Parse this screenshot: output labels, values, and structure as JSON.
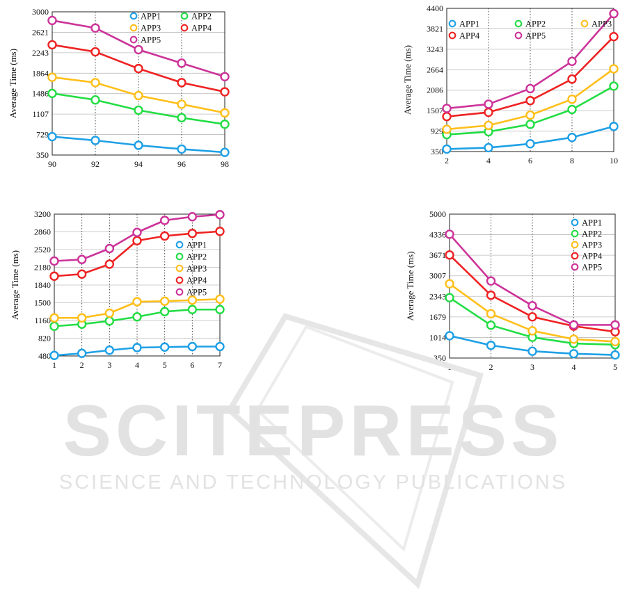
{
  "figure": {
    "watermark": {
      "main": "SCITEPRESS",
      "sub": "SCIENCE AND TECHNOLOGY PUBLICATIONS"
    }
  },
  "chart_data": [
    {
      "type": "line",
      "panel": "top-left",
      "ylabel": "Average Time (ms)",
      "xlabel": "",
      "x": [
        90,
        92,
        94,
        96,
        98
      ],
      "xticks": [
        "90",
        "92",
        "94",
        "96",
        "98"
      ],
      "yticks": [
        "350",
        "729",
        "1107",
        "1486",
        "1864",
        "2243",
        "2621",
        "3000"
      ],
      "ylim": [
        350,
        3000
      ],
      "grid": "vertical dotted + horizontal",
      "legend_placement": "top-right",
      "legend_cols": 2,
      "series": [
        {
          "name": "APP1",
          "color": "#1ea0e6",
          "values": [
            690,
            620,
            530,
            460,
            400
          ]
        },
        {
          "name": "APP2",
          "color": "#22dd44",
          "values": [
            1490,
            1370,
            1180,
            1040,
            920
          ]
        },
        {
          "name": "APP3",
          "color": "#ffbf1a",
          "values": [
            1790,
            1690,
            1450,
            1290,
            1130
          ]
        },
        {
          "name": "APP4",
          "color": "#ee2222",
          "values": [
            2390,
            2260,
            1950,
            1690,
            1520
          ]
        },
        {
          "name": "APP5",
          "color": "#cc3399",
          "values": [
            2840,
            2700,
            2300,
            2050,
            1800
          ]
        }
      ]
    },
    {
      "type": "line",
      "panel": "top-right",
      "ylabel": "Average Time (ms)",
      "xlabel": "",
      "x": [
        2,
        4,
        6,
        8,
        10
      ],
      "xticks": [
        "2",
        "4",
        "6",
        "8",
        "10"
      ],
      "yticks": [
        "350",
        "929",
        "1507",
        "2086",
        "2664",
        "3243",
        "3821",
        "4400"
      ],
      "ylim": [
        350,
        4400
      ],
      "grid": "vertical dotted + horizontal",
      "legend_placement": "top-left",
      "legend_cols": 3,
      "series": [
        {
          "name": "APP1",
          "color": "#1ea0e6",
          "values": [
            420,
            460,
            570,
            750,
            1060
          ]
        },
        {
          "name": "APP2",
          "color": "#22dd44",
          "values": [
            830,
            910,
            1120,
            1540,
            2200
          ]
        },
        {
          "name": "APP3",
          "color": "#ffbf1a",
          "values": [
            980,
            1090,
            1380,
            1830,
            2690
          ]
        },
        {
          "name": "APP4",
          "color": "#ee2222",
          "values": [
            1340,
            1460,
            1790,
            2400,
            3600
          ]
        },
        {
          "name": "APP5",
          "color": "#cc3399",
          "values": [
            1570,
            1690,
            2130,
            2900,
            4250
          ]
        }
      ]
    },
    {
      "type": "line",
      "panel": "bottom-left",
      "ylabel": "Average Time (ms)",
      "xlabel": "",
      "x": [
        1,
        2,
        3,
        4,
        5,
        6,
        7
      ],
      "xticks": [
        "1",
        "2",
        "3",
        "4",
        "5",
        "6",
        "7"
      ],
      "yticks": [
        "480",
        "820",
        "1160",
        "1500",
        "1840",
        "2180",
        "2520",
        "2860",
        "3200"
      ],
      "ylim": [
        480,
        3200
      ],
      "grid": "vertical dotted + horizontal",
      "legend_placement": "right",
      "legend_cols": 1,
      "series": [
        {
          "name": "APP1",
          "color": "#1ea0e6",
          "values": [
            490,
            530,
            590,
            640,
            650,
            660,
            660
          ]
        },
        {
          "name": "APP2",
          "color": "#22dd44",
          "values": [
            1050,
            1090,
            1150,
            1230,
            1330,
            1370,
            1370
          ]
        },
        {
          "name": "APP3",
          "color": "#ffbf1a",
          "values": [
            1210,
            1210,
            1300,
            1520,
            1530,
            1550,
            1570
          ]
        },
        {
          "name": "APP4",
          "color": "#ee2222",
          "values": [
            2010,
            2050,
            2240,
            2690,
            2780,
            2830,
            2870
          ]
        },
        {
          "name": "APP5",
          "color": "#cc3399",
          "values": [
            2300,
            2330,
            2540,
            2850,
            3080,
            3150,
            3190
          ]
        }
      ]
    },
    {
      "type": "line",
      "panel": "bottom-right",
      "ylabel": "Average Time (ms)",
      "xlabel": "",
      "x": [
        1,
        2,
        3,
        4,
        5
      ],
      "xticks": [
        "1",
        "2",
        "3",
        "4",
        "5"
      ],
      "yticks": [
        "350",
        "1014",
        "1679",
        "2343",
        "3007",
        "3671",
        "4336",
        "5000"
      ],
      "ylim": [
        350,
        5000
      ],
      "grid": "vertical dotted + horizontal",
      "legend_placement": "top-right",
      "legend_cols": 1,
      "series": [
        {
          "name": "APP1",
          "color": "#1ea0e6",
          "values": [
            1070,
            760,
            570,
            490,
            450
          ]
        },
        {
          "name": "APP2",
          "color": "#22dd44",
          "values": [
            2300,
            1410,
            1020,
            820,
            780
          ]
        },
        {
          "name": "APP3",
          "color": "#ffbf1a",
          "values": [
            2750,
            1780,
            1230,
            960,
            880
          ]
        },
        {
          "name": "APP4",
          "color": "#ee2222",
          "values": [
            3680,
            2380,
            1680,
            1380,
            1200
          ]
        },
        {
          "name": "APP5",
          "color": "#cc3399",
          "values": [
            4350,
            2840,
            2040,
            1420,
            1420
          ]
        }
      ]
    }
  ]
}
